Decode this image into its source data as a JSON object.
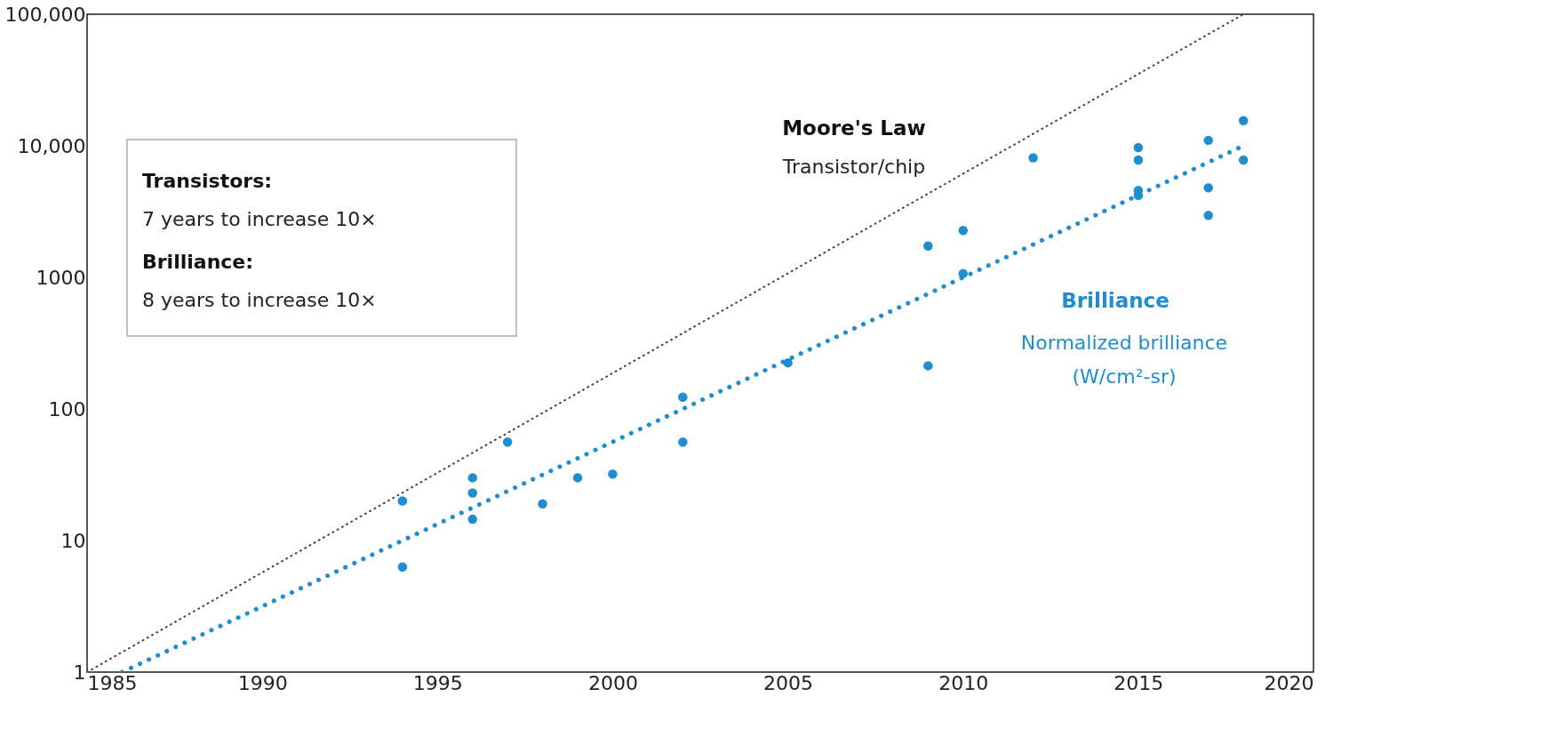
{
  "chart_data": {
    "type": "scatter",
    "log": "y",
    "grid": false,
    "legend": false,
    "xlim": [
      1985,
      2020
    ],
    "xticks": [
      1985,
      1990,
      1995,
      2000,
      2005,
      2010,
      2015,
      2020
    ],
    "ylim": [
      1,
      100000
    ],
    "yticks": [
      1,
      10,
      100,
      1000,
      {
        "value": 10000,
        "label": "10,000"
      },
      {
        "value": 100000,
        "label": "100,000"
      }
    ],
    "series": [
      {
        "name": "Moore's Law",
        "type": "line",
        "line_style": "dotted",
        "marker": "none",
        "color": "#444444",
        "x": [
          1985,
          2018
        ],
        "values": [
          1,
          100000
        ]
      },
      {
        "type": "line",
        "line_style": "dotted",
        "marker": "none",
        "color": "#1f8dcf",
        "x": [
          1986,
          2018
        ],
        "values": [
          1,
          10000
        ]
      },
      {
        "name": "Brilliance",
        "marker": "circle",
        "color": "#1f8dcf",
        "x": [
          1994,
          1994,
          1996,
          1996,
          1996,
          1997,
          1998,
          1999,
          2000,
          2002,
          2002,
          2005,
          2009,
          2009,
          2010,
          2010,
          2012,
          2015,
          2015,
          2015,
          2015,
          2017,
          2017,
          2017,
          2018,
          2018
        ],
        "values": [
          20,
          6.3,
          30,
          23,
          14.5,
          56,
          19,
          30,
          32,
          123,
          56,
          224,
          1730,
          213,
          2270,
          1070,
          8100,
          9700,
          7800,
          4570,
          4200,
          11000,
          4800,
          2960,
          15500,
          7800
        ]
      }
    ],
    "annotations": [
      "Transistor/chip",
      "Normalized brilliance\n(W/cm²-sr)",
      "Transistors:",
      "7 years to increase 10×",
      "Brilliance:",
      "8 years to increase 10×"
    ]
  }
}
